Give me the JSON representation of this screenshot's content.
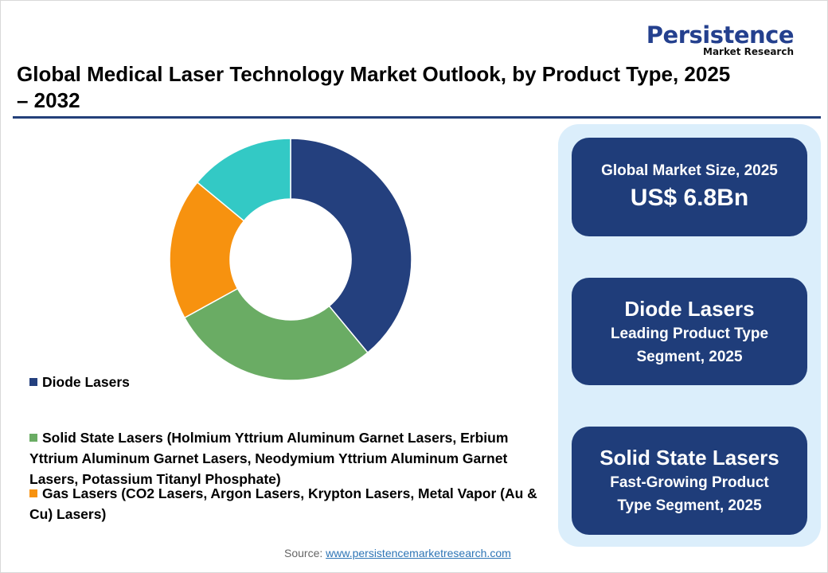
{
  "logo": {
    "line1": "Persistence",
    "line2": "Market Research"
  },
  "title": "Global Medical Laser Technology Market Outlook, by Product Type, 2025 – 2032",
  "cards": [
    {
      "line1": "Global Market Size, 2025",
      "value": "US$ 6.8Bn"
    },
    {
      "heading": "Diode Lasers",
      "sub": "Leading Product Type Segment, 2025"
    },
    {
      "heading": "Solid State Lasers",
      "sub": "Fast-Growing Product Type Segment, 2025"
    }
  ],
  "legend": [
    {
      "label": "Diode Lasers",
      "color": "#24407e"
    },
    {
      "label": "Solid State Lasers (Holmium Yttrium Aluminum Garnet Lasers, Erbium Yttrium Aluminum Garnet Lasers, Neodymium Yttrium Aluminum Garnet Lasers, Potassium Titanyl Phosphate)",
      "color": "#6aac64"
    },
    {
      "label": "Gas Lasers (CO2 Lasers, Argon Lasers, Krypton Lasers, Metal Vapor (Au & Cu) Lasers)",
      "color": "#f7920f"
    }
  ],
  "source": {
    "label": "Source: ",
    "link": "www.persistencemarketresearch.com"
  },
  "chart_data": {
    "type": "pie",
    "donut": true,
    "categories": [
      "Diode Lasers",
      "Solid State Lasers",
      "Gas Lasers",
      ""
    ],
    "values": [
      39,
      28,
      19,
      14
    ],
    "colors": [
      "#24407e",
      "#6aac64",
      "#f7920f",
      "#33c9c5"
    ],
    "legend_position": "bottom-left"
  }
}
